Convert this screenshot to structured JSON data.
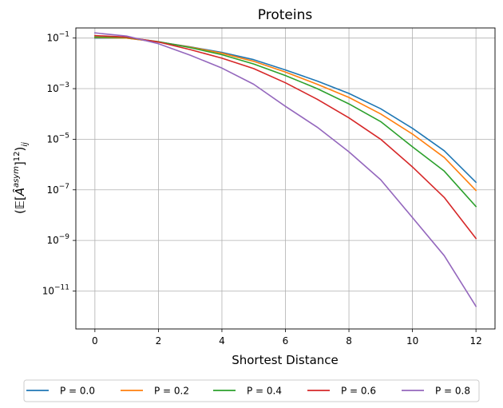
{
  "chart_data": {
    "type": "line",
    "title": "Proteins",
    "xlabel": "Shortest Distance",
    "ylabel": "(𝔼[Â^{asym}]12)_ij",
    "ylabel_parts": {
      "open": "(",
      "e": "𝔼",
      "lb": "[",
      "a": "Â",
      "sup": "asym",
      "rb": "]",
      "num": "12",
      "close": ")",
      "sub": "ij"
    },
    "x_scale": "linear",
    "y_scale": "log",
    "xlim": [
      -0.6,
      12.6
    ],
    "ylim_log10": [
      -12.5,
      -0.6
    ],
    "xticks": [
      0,
      2,
      4,
      6,
      8,
      10,
      12
    ],
    "xtick_labels": [
      "0",
      "2",
      "4",
      "6",
      "8",
      "10",
      "12"
    ],
    "yticks_log10": [
      -1,
      -3,
      -5,
      -7,
      -9,
      -11
    ],
    "ytick_labels": [
      {
        "base": "10",
        "exp": "−1"
      },
      {
        "base": "10",
        "exp": "−3"
      },
      {
        "base": "10",
        "exp": "−5"
      },
      {
        "base": "10",
        "exp": "−7"
      },
      {
        "base": "10",
        "exp": "−9"
      },
      {
        "base": "10",
        "exp": "−11"
      }
    ],
    "grid": true,
    "legend_position": "bottom-center outside",
    "x": [
      0,
      1,
      2,
      3,
      4,
      5,
      6,
      7,
      8,
      9,
      10,
      11,
      12
    ],
    "series": [
      {
        "name": "P = 0.0",
        "color": "#1f77b4",
        "values": [
          0.1,
          0.1,
          0.07,
          0.045,
          0.027,
          0.014,
          0.0055,
          0.002,
          0.00065,
          0.00016,
          2.7e-05,
          3.5e-06,
          2e-07
        ]
      },
      {
        "name": "P = 0.2",
        "color": "#ff7f0e",
        "values": [
          0.105,
          0.1,
          0.07,
          0.044,
          0.025,
          0.012,
          0.0045,
          0.0015,
          0.00045,
          0.0001,
          1.6e-05,
          1.9e-06,
          9.5e-08
        ]
      },
      {
        "name": "P = 0.4",
        "color": "#2ca02c",
        "values": [
          0.11,
          0.105,
          0.072,
          0.042,
          0.022,
          0.0095,
          0.0033,
          0.001,
          0.00025,
          5e-05,
          5e-06,
          5.5e-07,
          2.2e-08
        ]
      },
      {
        "name": "P = 0.6",
        "color": "#d62728",
        "values": [
          0.125,
          0.11,
          0.07,
          0.035,
          0.016,
          0.0062,
          0.0017,
          0.00038,
          7e-05,
          1e-05,
          8e-07,
          5e-08,
          1.2e-09
        ]
      },
      {
        "name": "P = 0.8",
        "color": "#9467bd",
        "values": [
          0.16,
          0.12,
          0.06,
          0.021,
          0.0065,
          0.0015,
          0.0002,
          3e-05,
          3.2e-06,
          2.5e-07,
          8e-09,
          2.5e-10,
          2.5e-12
        ]
      }
    ]
  }
}
